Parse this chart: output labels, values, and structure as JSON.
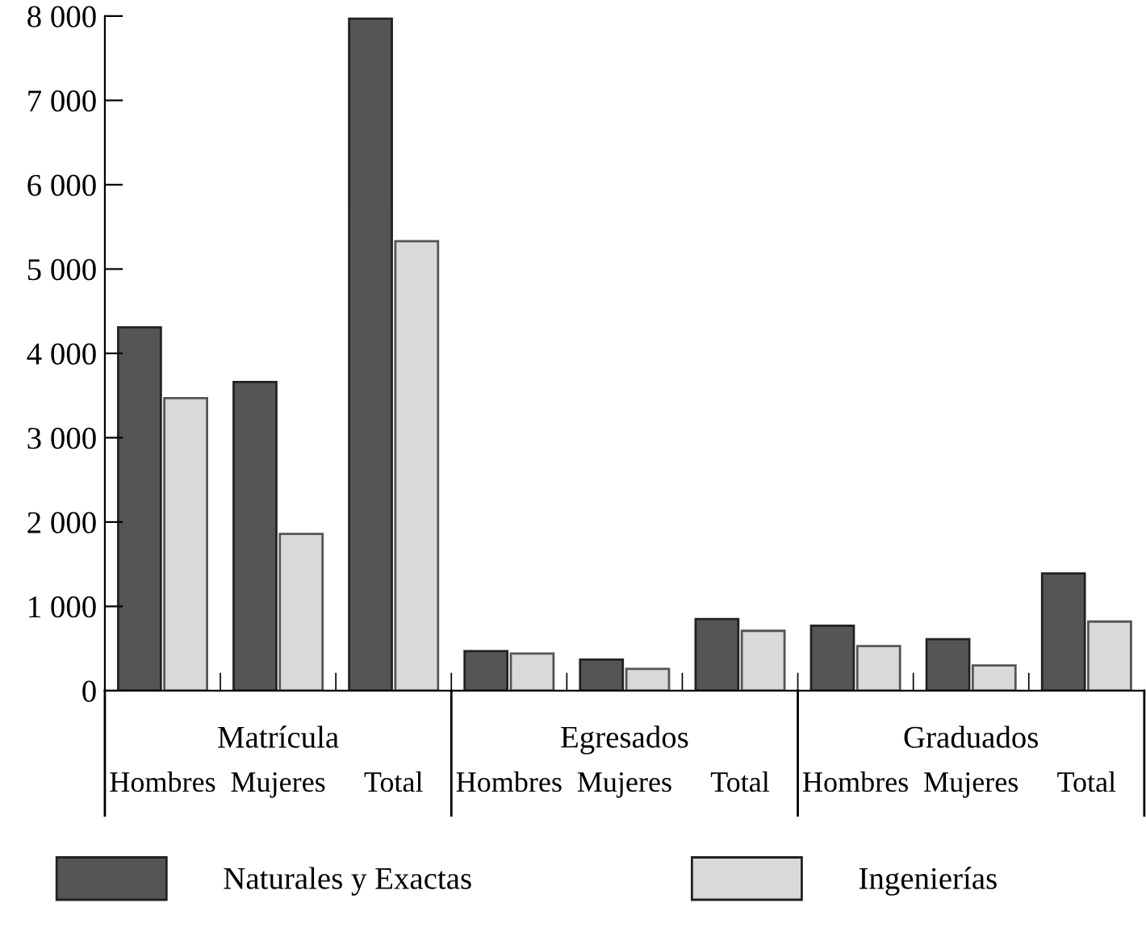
{
  "chart_data": {
    "type": "bar",
    "categories": [
      "Hombres",
      "Mujeres",
      "Total",
      "Hombres",
      "Mujeres",
      "Total",
      "Hombres",
      "Mujeres",
      "Total"
    ],
    "annotations": [
      "Matrícula",
      "Egresados",
      "Graduados"
    ],
    "series": [
      {
        "name": "Naturales y Exactas",
        "color": "#555555",
        "values": [
          4310,
          3660,
          7970,
          470,
          370,
          850,
          770,
          610,
          1390
        ]
      },
      {
        "name": "Ingenierías",
        "color": "#d9d9d9",
        "values": [
          3470,
          1860,
          5330,
          440,
          260,
          710,
          530,
          300,
          820
        ]
      }
    ],
    "ylim": [
      0,
      8000
    ],
    "yticks": [
      0,
      {
        "value": 1000,
        "label": "1 000"
      },
      {
        "value": 2000,
        "label": "2 000"
      },
      {
        "value": 3000,
        "label": "3 000"
      },
      {
        "value": 4000,
        "label": "4 000"
      },
      {
        "value": 5000,
        "label": "5 000"
      },
      {
        "value": 6000,
        "label": "6 000"
      },
      {
        "value": 7000,
        "label": "7 000"
      },
      {
        "value": 8000,
        "label": "8 000"
      }
    ],
    "grid": false,
    "legend": "bottom"
  }
}
